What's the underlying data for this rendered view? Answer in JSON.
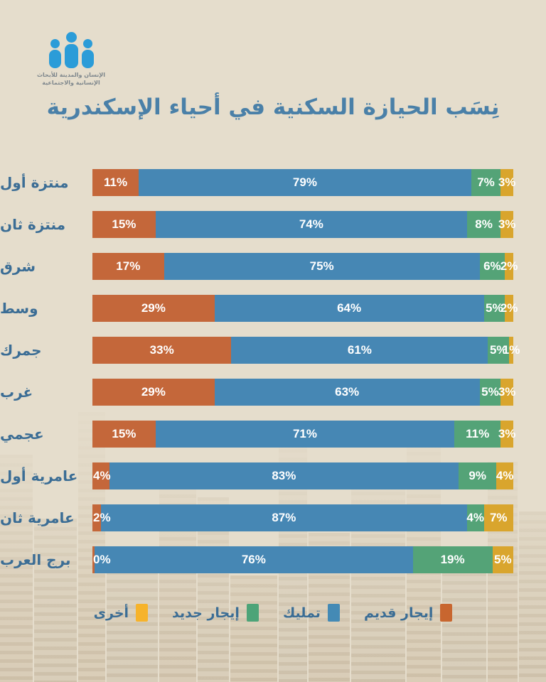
{
  "logo": {
    "line1": "الإنسان والمدينة للأبحاث",
    "line2": "الإنسانية والاجتماعية"
  },
  "title": "نِسَب الحيازة السكنية في أحياء الإسكندرية",
  "chart_data": {
    "type": "bar",
    "orientation": "horizontal",
    "stacked": true,
    "value_unit": "%",
    "xlim": [
      0,
      100
    ],
    "grid": false,
    "legend_position": "bottom",
    "categories": [
      "منتزة أول",
      "منتزة ثان",
      "شرق",
      "وسط",
      "جمرك",
      "غرب",
      "عجمي",
      "عامرية أول",
      "عامرية ثان",
      "برج العرب"
    ],
    "series": [
      {
        "name": "إيجار قديم",
        "key": "old-rent",
        "color": "#c4673a",
        "values": [
          11,
          15,
          17,
          29,
          33,
          29,
          15,
          4,
          2,
          0
        ]
      },
      {
        "name": "تمليك",
        "key": "ownership",
        "color": "#4687b4",
        "values": [
          79,
          74,
          75,
          64,
          61,
          63,
          71,
          83,
          87,
          76
        ]
      },
      {
        "name": "إيجار جديد",
        "key": "new-rent",
        "color": "#54a377",
        "values": [
          7,
          8,
          6,
          5,
          5,
          5,
          11,
          9,
          4,
          19
        ]
      },
      {
        "name": "أخرى",
        "key": "other",
        "color": "#d9a52d",
        "values": [
          3,
          3,
          2,
          2,
          1,
          3,
          3,
          4,
          7,
          5
        ]
      }
    ]
  },
  "legend": {
    "items": [
      {
        "label": "إيجار قديم",
        "key": "old-rent",
        "color": "#c8662f"
      },
      {
        "label": "تمليك",
        "key": "ownership",
        "color": "#448ab5"
      },
      {
        "label": "إيجار جديد",
        "key": "new-rent",
        "color": "#4da478"
      },
      {
        "label": "أخرى",
        "key": "other",
        "color": "#f6b32b"
      }
    ]
  },
  "colors": {
    "background": "#e5ddcc",
    "title_text": "#4a80a8",
    "category_text": "#3b6d95",
    "bar_value_text": "#ffffff",
    "logo_blue": "#2b9cd8"
  }
}
